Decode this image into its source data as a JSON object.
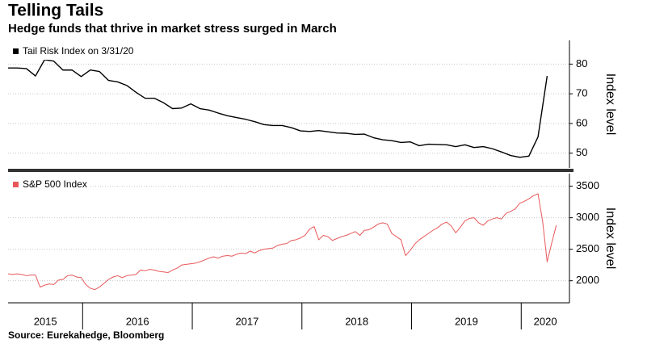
{
  "title": "Telling Tails",
  "subtitle": "Hedge funds that thrive in market stress surged in March",
  "source": "Source: Eurekahedge, Bloomberg",
  "chart_data": [
    {
      "type": "line",
      "series": [
        {
          "name": "Tail Risk Index on 3/31/20",
          "color": "#000000",
          "values": [
            78.7,
            78.7,
            78.5,
            76,
            81.5,
            81,
            78,
            78,
            75.8,
            78,
            77.5,
            74.5,
            74,
            72.8,
            70.5,
            68.5,
            68.5,
            67,
            65,
            65.2,
            66.6,
            65,
            64.5,
            63.5,
            62.6,
            62,
            61.4,
            60.6,
            59.6,
            59.3,
            59.3,
            58.6,
            57.5,
            57.3,
            57.6,
            57.2,
            56.8,
            56.7,
            56.3,
            56.4,
            55.2,
            54.5,
            54.2,
            53.6,
            53.8,
            52.5,
            53,
            52.9,
            52.8,
            52.2,
            52.8,
            51.9,
            52.2,
            51.5,
            50.4,
            49.2,
            48.6,
            49,
            55.5,
            76
          ]
        }
      ],
      "xlim": [
        2015.32,
        2020.44
      ],
      "ylim": [
        45,
        88
      ],
      "yticks": [
        50,
        60,
        70,
        80
      ],
      "y_label": "Index level",
      "grid": true
    },
    {
      "type": "line",
      "series": [
        {
          "name": "S&P 500 Index",
          "color": "#e8585a",
          "values": [
            2110,
            2100,
            2110,
            2100,
            2080,
            2090,
            2090,
            1900,
            1930,
            1950,
            1940,
            2010,
            2020,
            2080,
            2090,
            2060,
            2050,
            1940,
            1880,
            1860,
            1900,
            1960,
            2020,
            2060,
            2080,
            2050,
            2080,
            2090,
            2100,
            2170,
            2160,
            2180,
            2170,
            2150,
            2140,
            2130,
            2170,
            2200,
            2250,
            2260,
            2270,
            2280,
            2300,
            2330,
            2360,
            2380,
            2360,
            2390,
            2400,
            2390,
            2420,
            2440,
            2430,
            2470,
            2440,
            2480,
            2500,
            2510,
            2520,
            2560,
            2580,
            2590,
            2640,
            2650,
            2680,
            2720,
            2820,
            2860,
            2650,
            2720,
            2700,
            2640,
            2670,
            2700,
            2720,
            2750,
            2780,
            2720,
            2800,
            2810,
            2850,
            2900,
            2920,
            2900,
            2750,
            2700,
            2650,
            2400,
            2480,
            2580,
            2650,
            2700,
            2750,
            2800,
            2840,
            2900,
            2930,
            2870,
            2760,
            2850,
            2950,
            2990,
            3000,
            2920,
            2880,
            2950,
            2980,
            3000,
            2980,
            3070,
            3100,
            3140,
            3230,
            3260,
            3300,
            3350,
            3380,
            2950,
            2300,
            2600,
            2880
          ]
        }
      ],
      "xlim": [
        2015.32,
        2020.44
      ],
      "xticks": [
        2015,
        2016,
        2017,
        2018,
        2019,
        2020
      ],
      "ylim": [
        1650,
        3700
      ],
      "yticks": [
        2000,
        2500,
        3000,
        3500
      ],
      "y_label": "Index level",
      "grid": true
    }
  ]
}
